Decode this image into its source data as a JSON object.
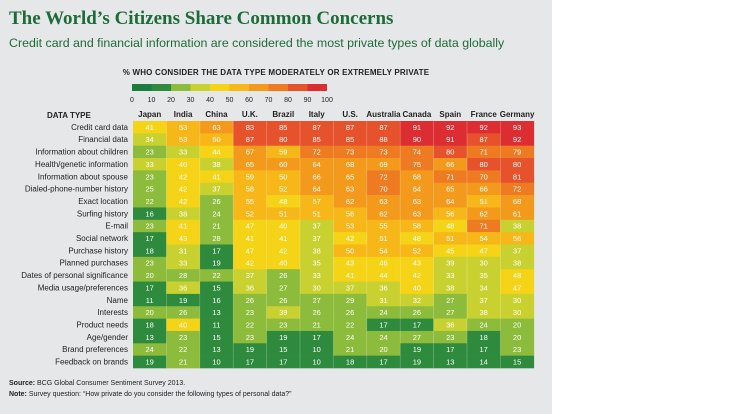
{
  "title": "The World’s Citizens Share Common Concerns",
  "subtitle": "Credit card and financial information are considered the most private types of data globally",
  "legend": {
    "title": "% WHO CONSIDER THE DATA TYPE MODERATELY OR EXTREMELY PRIVATE",
    "ticks": [
      "0",
      "10",
      "20",
      "30",
      "40",
      "50",
      "60",
      "70",
      "80",
      "90",
      "100"
    ],
    "colors": [
      "#1c7b3f",
      "#2e8a3c",
      "#8dbb3b",
      "#c9d130",
      "#f5d316",
      "#f7b718",
      "#f39a1c",
      "#ee7b22",
      "#e6522c",
      "#dc2e32"
    ]
  },
  "source_label": "Source:",
  "source_text": "BCG Global Consumer Sentiment Survey 2013.",
  "note_label": "Note:",
  "note_text": "Survey question: “How private do you consider the following types of personal data?”",
  "chart_data": {
    "type": "heatmap",
    "title": "The World’s Citizens Share Common Concerns",
    "row_header": "DATA TYPE",
    "columns": [
      "Japan",
      "India",
      "China",
      "U.K.",
      "Brazil",
      "Italy",
      "U.S.",
      "Australia",
      "Canada",
      "Spain",
      "France",
      "Germany"
    ],
    "rows": [
      "Credit card data",
      "Financial data",
      "Information about children",
      "Health/genetic information",
      "Information about spouse",
      "Dialed-phone-number history",
      "Exact location",
      "Surfing history",
      "E-mail",
      "Social network",
      "Purchase history",
      "Planned purchases",
      "Dates of personal significance",
      "Media usage/preferences",
      "Name",
      "Interests",
      "Product needs",
      "Age/gender",
      "Brand preferences",
      "Feedback on brands"
    ],
    "values": [
      [
        41,
        53,
        63,
        83,
        85,
        87,
        87,
        87,
        91,
        92,
        92,
        93
      ],
      [
        34,
        53,
        50,
        87,
        80,
        85,
        85,
        88,
        90,
        91,
        87,
        92
      ],
      [
        23,
        33,
        44,
        67,
        59,
        72,
        73,
        73,
        74,
        80,
        71,
        79
      ],
      [
        33,
        40,
        38,
        65,
        60,
        64,
        68,
        69,
        75,
        66,
        80,
        80
      ],
      [
        23,
        42,
        41,
        59,
        50,
        66,
        65,
        72,
        68,
        71,
        70,
        81
      ],
      [
        25,
        42,
        37,
        58,
        52,
        64,
        63,
        70,
        64,
        65,
        66,
        72
      ],
      [
        22,
        42,
        26,
        55,
        48,
        57,
        62,
        63,
        63,
        64,
        51,
        68
      ],
      [
        16,
        38,
        24,
        52,
        51,
        51,
        56,
        62,
        63,
        56,
        62,
        61
      ],
      [
        23,
        41,
        21,
        47,
        40,
        37,
        53,
        55,
        58,
        48,
        71,
        38
      ],
      [
        17,
        43,
        28,
        41,
        41,
        37,
        42,
        51,
        48,
        51,
        54,
        56
      ],
      [
        18,
        31,
        17,
        47,
        42,
        38,
        50,
        54,
        52,
        45,
        47,
        37
      ],
      [
        23,
        33,
        19,
        42,
        40,
        35,
        43,
        46,
        43,
        39,
        30,
        38
      ],
      [
        20,
        28,
        22,
        37,
        26,
        33,
        41,
        44,
        42,
        33,
        35,
        48
      ],
      [
        17,
        36,
        15,
        36,
        27,
        30,
        37,
        36,
        40,
        38,
        34,
        47
      ],
      [
        11,
        19,
        16,
        26,
        26,
        27,
        29,
        31,
        32,
        27,
        37,
        30
      ],
      [
        20,
        26,
        13,
        23,
        39,
        26,
        26,
        24,
        26,
        27,
        38,
        30
      ],
      [
        18,
        40,
        11,
        22,
        23,
        21,
        22,
        17,
        17,
        36,
        24,
        20
      ],
      [
        13,
        23,
        15,
        23,
        19,
        17,
        24,
        24,
        27,
        23,
        18,
        20
      ],
      [
        24,
        22,
        13,
        19,
        15,
        10,
        21,
        20,
        19,
        17,
        17,
        23
      ],
      [
        19,
        21,
        10,
        17,
        17,
        10,
        18,
        17,
        19,
        13,
        14,
        15
      ]
    ],
    "color_scale": {
      "min": 0,
      "max": 100,
      "bins": 10
    }
  }
}
